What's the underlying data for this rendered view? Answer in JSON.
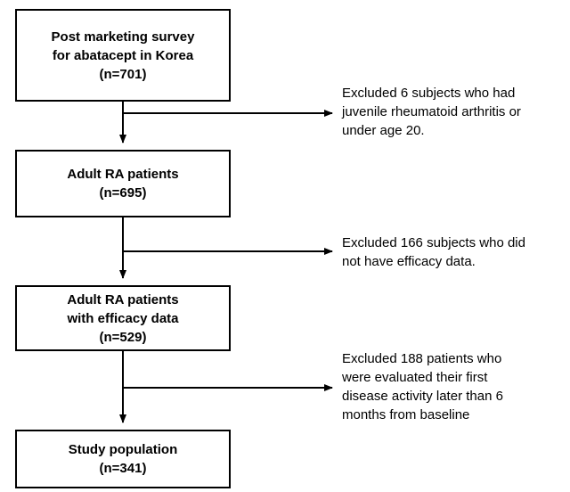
{
  "boxes": [
    {
      "lines": [
        "Post marketing survey",
        "for abatacept in Korea",
        "(n=701)"
      ]
    },
    {
      "lines": [
        "Adult RA patients",
        "(n=695)"
      ]
    },
    {
      "lines": [
        "Adult RA patients",
        "with efficacy data",
        "(n=529)"
      ]
    },
    {
      "lines": [
        "Study population",
        "(n=341)"
      ]
    }
  ],
  "exclusions": [
    {
      "lines": [
        "Excluded 6 subjects who had",
        "juvenile rheumatoid arthritis or",
        "under age 20."
      ]
    },
    {
      "lines": [
        "Excluded 166 subjects who did",
        "not have efficacy data."
      ]
    },
    {
      "lines": [
        "Excluded 188 patients who",
        "were evaluated their first",
        "disease activity later than 6",
        "months from baseline"
      ]
    }
  ]
}
